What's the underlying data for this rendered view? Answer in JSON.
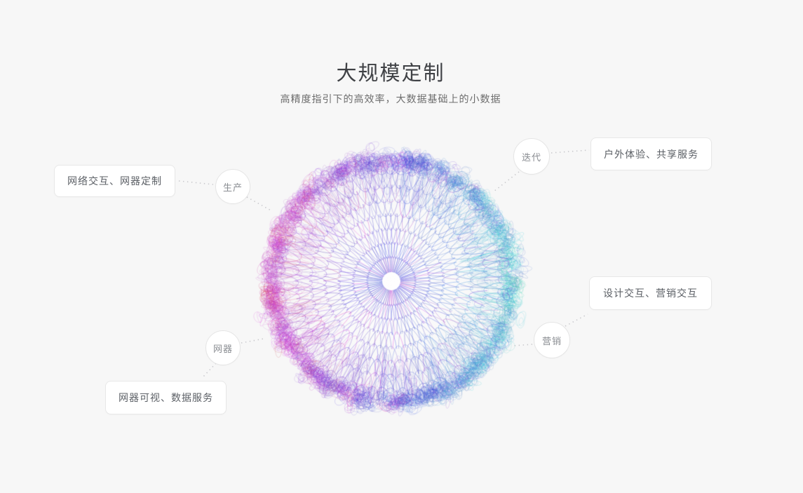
{
  "page": {
    "title": "大规模定制",
    "subtitle": "高精度指引下的高效率，大数据基础上的小数据",
    "background": "#f7f7f7"
  },
  "callouts": {
    "production": {
      "node": "生产",
      "label": "网络交互、网器定制"
    },
    "net_device": {
      "node": "网器",
      "label": "网器可视、数据服务"
    },
    "iteration": {
      "node": "迭代",
      "label": "户外体验、共享服务"
    },
    "marketing": {
      "node": "营销",
      "label": "设计交互、营销交互"
    }
  },
  "connectors": {
    "color": "#c9c9cd",
    "style": "dotted"
  },
  "sphere": {
    "hue_left_deg": 302,
    "hue_right_deg": 182,
    "color_left": "#c368cb",
    "color_mid": "#6a6ac8",
    "color_right": "#4ed2dc"
  }
}
